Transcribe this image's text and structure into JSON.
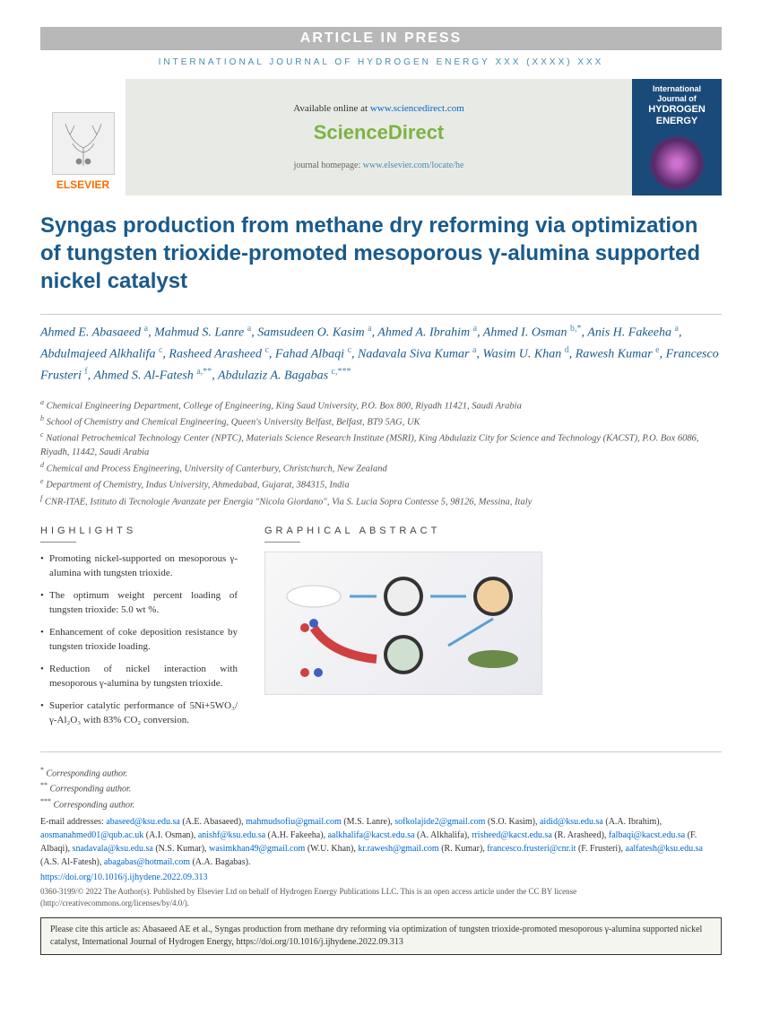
{
  "header": {
    "article_in_press": "ARTICLE IN PRESS",
    "journal_line": "INTERNATIONAL JOURNAL OF HYDROGEN ENERGY XXX (XXXX) XXX"
  },
  "banner": {
    "elsevier": "ELSEVIER",
    "available_prefix": "Available online at ",
    "available_link": "www.sciencedirect.com",
    "sciencedirect": "ScienceDirect",
    "homepage_prefix": "journal homepage: ",
    "homepage_link": "www.elsevier.com/locate/he",
    "cover_title1": "International Journal of",
    "cover_title2": "HYDROGEN",
    "cover_title3": "ENERGY"
  },
  "title": "Syngas production from methane dry reforming via optimization of tungsten trioxide-promoted mesoporous γ-alumina supported nickel catalyst",
  "authors_html": "Ahmed E. Abasaeed <sup>a</sup>, Mahmud S. Lanre <sup>a</sup>, Samsudeen O. Kasim <sup>a</sup>, Ahmed A. Ibrahim <sup>a</sup>, Ahmed I. Osman <sup>b,*</sup>, Anis H. Fakeeha <sup>a</sup>, Abdulmajeed Alkhalifa <sup>c</sup>, Rasheed Arasheed <sup>c</sup>, Fahad Albaqi <sup>c</sup>, Nadavala Siva Kumar <sup>a</sup>, Wasim U. Khan <sup>d</sup>, Rawesh Kumar <sup>e</sup>, Francesco Frusteri <sup>f</sup>, Ahmed S. Al-Fatesh <sup>a,**</sup>, Abdulaziz A. Bagabas <sup>c,***</sup>",
  "affiliations": [
    {
      "sup": "a",
      "text": "Chemical Engineering Department, College of Engineering, King Saud University, P.O. Box 800, Riyadh 11421, Saudi Arabia"
    },
    {
      "sup": "b",
      "text": "School of Chemistry and Chemical Engineering, Queen's University Belfast, Belfast, BT9 5AG, UK"
    },
    {
      "sup": "c",
      "text": "National Petrochemical Technology Center (NPTC), Materials Science Research Institute (MSRI), King Abdulaziz City for Science and Technology (KACST), P.O. Box 6086, Riyadh, 11442, Saudi Arabia"
    },
    {
      "sup": "d",
      "text": "Chemical and Process Engineering, University of Canterbury, Christchurch, New Zealand"
    },
    {
      "sup": "e",
      "text": "Department of Chemistry, Indus University, Ahmedabad, Gujarat, 384315, India"
    },
    {
      "sup": "f",
      "text": "CNR-ITAE, Istituto di Tecnologie Avanzate per Energia \"Nicola Giordano\", Via S. Lucia Sopra Contesse 5, 98126, Messina, Italy"
    }
  ],
  "sections": {
    "highlights_heading": "HIGHLIGHTS",
    "ga_heading": "GRAPHICAL ABSTRACT"
  },
  "highlights": [
    "Promoting nickel-supported on mesoporous γ-alumina with tungsten trioxide.",
    "The optimum weight percent loading of tungsten trioxide: 5.0 wt %.",
    "Enhancement of coke deposition resistance by tungsten trioxide loading.",
    "Reduction of nickel interaction with mesoporous γ-alumina by tungsten trioxide.",
    "Superior catalytic performance of 5Ni+5WO₃/γ-Al₂O₃ with 83% CO₂ conversion."
  ],
  "corresponding": [
    {
      "mark": "*",
      "text": "Corresponding author."
    },
    {
      "mark": "**",
      "text": "Corresponding author."
    },
    {
      "mark": "***",
      "text": "Corresponding author."
    }
  ],
  "emails_label": "E-mail addresses: ",
  "emails": [
    {
      "email": "abaseed@ksu.edu.sa",
      "name": "(A.E. Abasaeed)"
    },
    {
      "email": "mahmudsofiu@gmail.com",
      "name": "(M.S. Lanre)"
    },
    {
      "email": "sofkolajide2@gmail.com",
      "name": "(S.O. Kasim)"
    },
    {
      "email": "aidid@ksu.edu.sa",
      "name": "(A.A. Ibrahim)"
    },
    {
      "email": "aosmanahmed01@qub.ac.uk",
      "name": "(A.I. Osman)"
    },
    {
      "email": "anishf@ksu.edu.sa",
      "name": "(A.H. Fakeeha)"
    },
    {
      "email": "aalkhalifa@kacst.edu.sa",
      "name": "(A. Alkhalifa)"
    },
    {
      "email": "rrisheed@kacst.edu.sa",
      "name": "(R. Arasheed)"
    },
    {
      "email": "falbaqi@kacst.edu.sa",
      "name": "(F. Albaqi)"
    },
    {
      "email": "snadavala@ksu.edu.sa",
      "name": "(N.S. Kumar)"
    },
    {
      "email": "wasimkhan49@gmail.com",
      "name": "(W.U. Khan)"
    },
    {
      "email": "kr.rawesh@gmail.com",
      "name": "(R. Kumar)"
    },
    {
      "email": "francesco.frusteri@cnr.it",
      "name": "(F. Frusteri)"
    },
    {
      "email": "aalfatesh@ksu.edu.sa",
      "name": "(A.S. Al-Fatesh)"
    },
    {
      "email": "abagabas@hotmail.com",
      "name": "(A.A. Bagabas)"
    }
  ],
  "doi": "https://doi.org/10.1016/j.ijhydene.2022.09.313",
  "copyright": "0360-3199/© 2022 The Author(s). Published by Elsevier Ltd on behalf of Hydrogen Energy Publications LLC. This is an open access article under the CC BY license (http://creativecommons.org/licenses/by/4.0/).",
  "cite_box": "Please cite this article as: Abasaeed AE et al., Syngas production from methane dry reforming via optimization of tungsten trioxide-promoted mesoporous γ-alumina supported nickel catalyst, International Journal of Hydrogen Energy, https://doi.org/10.1016/j.ijhydene.2022.09.313",
  "colors": {
    "title_color": "#1a5a8a",
    "link_color": "#0066cc",
    "header_blue": "#4a8bb0",
    "elsevier_orange": "#ff6c00"
  }
}
